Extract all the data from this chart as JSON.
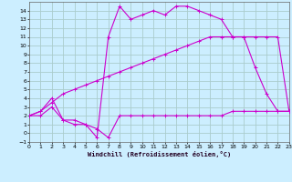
{
  "background_color": "#cceeff",
  "grid_color": "#aacccc",
  "line_color": "#cc00cc",
  "xlabel": "Windchill (Refroidissement éolien,°C)",
  "xlim": [
    0,
    23
  ],
  "ylim": [
    -1,
    15
  ],
  "xticks": [
    0,
    1,
    2,
    3,
    4,
    5,
    6,
    7,
    8,
    9,
    10,
    11,
    12,
    13,
    14,
    15,
    16,
    17,
    18,
    19,
    20,
    21,
    22,
    23
  ],
  "yticks": [
    -1,
    0,
    1,
    2,
    3,
    4,
    5,
    6,
    7,
    8,
    9,
    10,
    11,
    12,
    13,
    14
  ],
  "series1_x": [
    0,
    1,
    2,
    3,
    4,
    5,
    6,
    7,
    8,
    9,
    10,
    11,
    12,
    13,
    14,
    15,
    16,
    17,
    18,
    19,
    20,
    21,
    22,
    23
  ],
  "series1_y": [
    2.0,
    2.5,
    3.5,
    4.5,
    5.0,
    5.5,
    6.0,
    6.5,
    7.0,
    7.5,
    8.0,
    8.5,
    9.0,
    9.5,
    10.0,
    10.5,
    11.0,
    11.0,
    11.0,
    11.0,
    11.0,
    11.0,
    11.0,
    2.5
  ],
  "series2_x": [
    0,
    1,
    2,
    3,
    4,
    5,
    6,
    7,
    8,
    9,
    10,
    11,
    12,
    13,
    14,
    15,
    16,
    17,
    18,
    19,
    20,
    21,
    22,
    23
  ],
  "series2_y": [
    2.0,
    2.0,
    3.0,
    1.5,
    1.0,
    1.0,
    0.5,
    -0.5,
    2.0,
    2.0,
    2.0,
    2.0,
    2.0,
    2.0,
    2.0,
    2.0,
    2.0,
    2.0,
    2.5,
    2.5,
    2.5,
    2.5,
    2.5,
    2.5
  ],
  "series3_x": [
    0,
    1,
    2,
    3,
    4,
    5,
    6,
    7,
    8,
    9,
    10,
    11,
    12,
    13,
    14,
    15,
    16,
    17,
    18,
    19,
    20,
    21,
    22,
    23
  ],
  "series3_y": [
    2.0,
    2.5,
    4.0,
    1.5,
    1.5,
    1.0,
    -0.5,
    11.0,
    14.5,
    13.0,
    13.5,
    14.0,
    13.5,
    14.5,
    14.5,
    14.0,
    13.5,
    13.0,
    11.0,
    11.0,
    7.5,
    4.5,
    2.5,
    2.5
  ]
}
